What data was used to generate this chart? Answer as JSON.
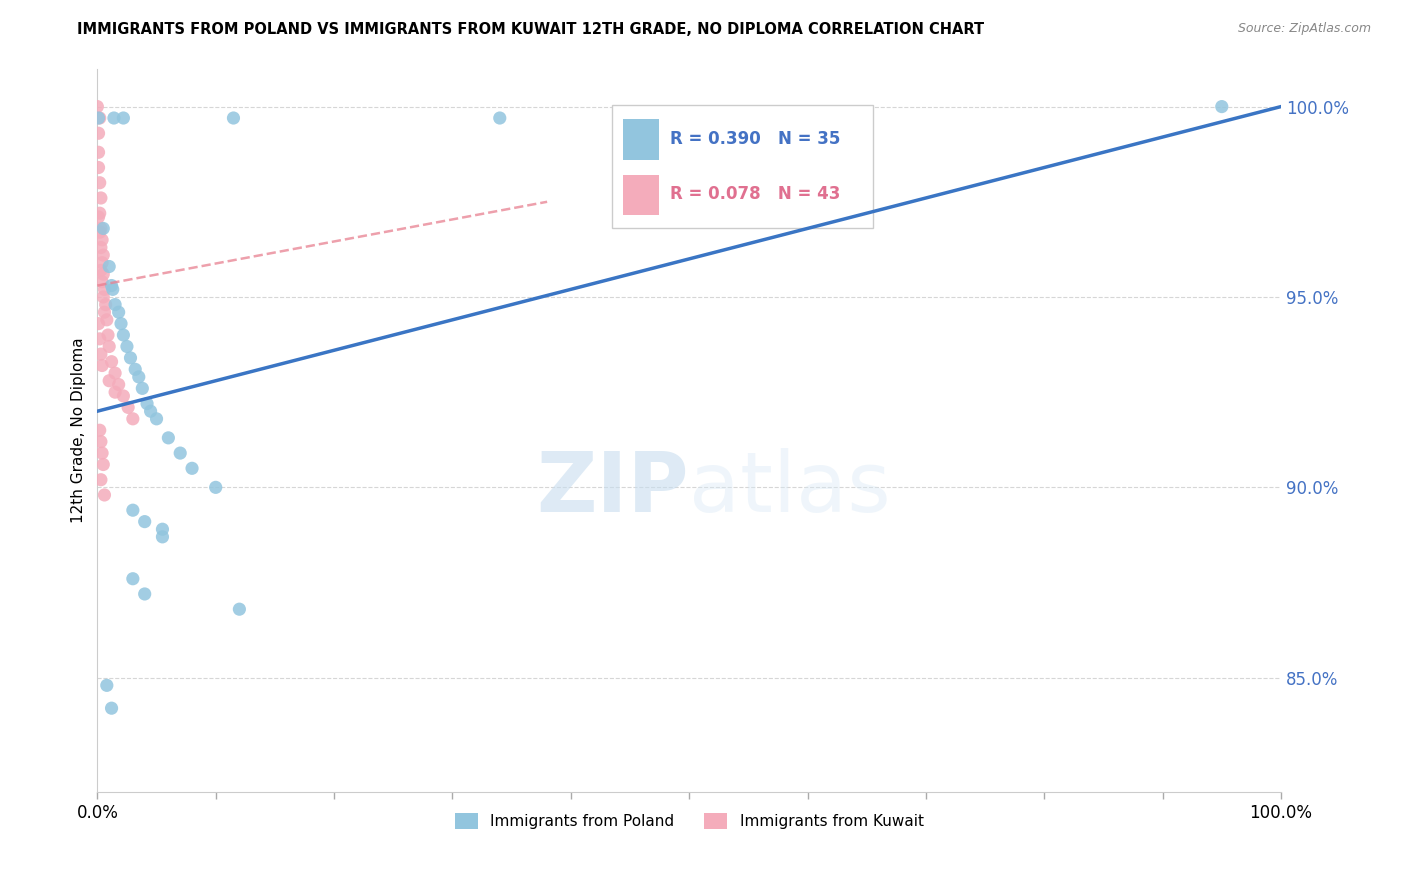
{
  "title": "IMMIGRANTS FROM POLAND VS IMMIGRANTS FROM KUWAIT 12TH GRADE, NO DIPLOMA CORRELATION CHART",
  "source": "Source: ZipAtlas.com",
  "ylabel": "12th Grade, No Diploma",
  "y_ticks_right": [
    0.85,
    0.9,
    0.95,
    1.0
  ],
  "y_tick_labels_right": [
    "85.0%",
    "90.0%",
    "95.0%",
    "100.0%"
  ],
  "x_ticks": [
    0.0,
    0.1,
    0.2,
    0.3,
    0.4,
    0.5,
    0.6,
    0.7,
    0.8,
    0.9,
    1.0
  ],
  "legend_blue_r": "R = 0.390",
  "legend_blue_n": "N = 35",
  "legend_pink_r": "R = 0.078",
  "legend_pink_n": "N = 43",
  "watermark_zip": "ZIP",
  "watermark_atlas": "atlas",
  "poland_color": "#92C5DE",
  "kuwait_color": "#F4ACBB",
  "poland_line_color": "#3A75C4",
  "kuwait_line_color": "#E88090",
  "poland_scatter": [
    [
      0.001,
      0.997
    ],
    [
      0.014,
      0.997
    ],
    [
      0.022,
      0.997
    ],
    [
      0.115,
      0.997
    ],
    [
      0.34,
      0.997
    ],
    [
      0.95,
      1.0
    ],
    [
      0.005,
      0.968
    ],
    [
      0.01,
      0.958
    ],
    [
      0.012,
      0.953
    ],
    [
      0.013,
      0.952
    ],
    [
      0.015,
      0.948
    ],
    [
      0.018,
      0.946
    ],
    [
      0.02,
      0.943
    ],
    [
      0.022,
      0.94
    ],
    [
      0.025,
      0.937
    ],
    [
      0.028,
      0.934
    ],
    [
      0.032,
      0.931
    ],
    [
      0.035,
      0.929
    ],
    [
      0.038,
      0.926
    ],
    [
      0.042,
      0.922
    ],
    [
      0.045,
      0.92
    ],
    [
      0.05,
      0.918
    ],
    [
      0.06,
      0.913
    ],
    [
      0.07,
      0.909
    ],
    [
      0.08,
      0.905
    ],
    [
      0.1,
      0.9
    ],
    [
      0.03,
      0.894
    ],
    [
      0.04,
      0.891
    ],
    [
      0.055,
      0.889
    ],
    [
      0.055,
      0.887
    ],
    [
      0.03,
      0.876
    ],
    [
      0.04,
      0.872
    ],
    [
      0.12,
      0.868
    ],
    [
      0.008,
      0.848
    ],
    [
      0.012,
      0.842
    ]
  ],
  "kuwait_scatter": [
    [
      0.0,
      1.0
    ],
    [
      0.002,
      0.997
    ],
    [
      0.001,
      0.993
    ],
    [
      0.001,
      0.988
    ],
    [
      0.001,
      0.984
    ],
    [
      0.002,
      0.98
    ],
    [
      0.003,
      0.976
    ],
    [
      0.002,
      0.972
    ],
    [
      0.003,
      0.968
    ],
    [
      0.004,
      0.965
    ],
    [
      0.005,
      0.961
    ],
    [
      0.003,
      0.957
    ],
    [
      0.004,
      0.954
    ],
    [
      0.005,
      0.95
    ],
    [
      0.006,
      0.946
    ],
    [
      0.001,
      0.971
    ],
    [
      0.002,
      0.967
    ],
    [
      0.003,
      0.963
    ],
    [
      0.004,
      0.959
    ],
    [
      0.005,
      0.956
    ],
    [
      0.006,
      0.952
    ],
    [
      0.007,
      0.948
    ],
    [
      0.008,
      0.944
    ],
    [
      0.009,
      0.94
    ],
    [
      0.01,
      0.937
    ],
    [
      0.012,
      0.933
    ],
    [
      0.015,
      0.93
    ],
    [
      0.018,
      0.927
    ],
    [
      0.022,
      0.924
    ],
    [
      0.026,
      0.921
    ],
    [
      0.03,
      0.918
    ],
    [
      0.001,
      0.943
    ],
    [
      0.002,
      0.939
    ],
    [
      0.003,
      0.935
    ],
    [
      0.004,
      0.932
    ],
    [
      0.01,
      0.928
    ],
    [
      0.015,
      0.925
    ],
    [
      0.002,
      0.915
    ],
    [
      0.003,
      0.912
    ],
    [
      0.004,
      0.909
    ],
    [
      0.005,
      0.906
    ],
    [
      0.003,
      0.902
    ],
    [
      0.006,
      0.898
    ]
  ],
  "xlim": [
    0.0,
    1.0
  ],
  "ylim": [
    0.82,
    1.01
  ],
  "poland_line": [
    [
      0.0,
      0.92
    ],
    [
      1.0,
      1.0
    ]
  ],
  "kuwait_line": [
    [
      0.0,
      0.953
    ],
    [
      0.38,
      0.975
    ]
  ]
}
